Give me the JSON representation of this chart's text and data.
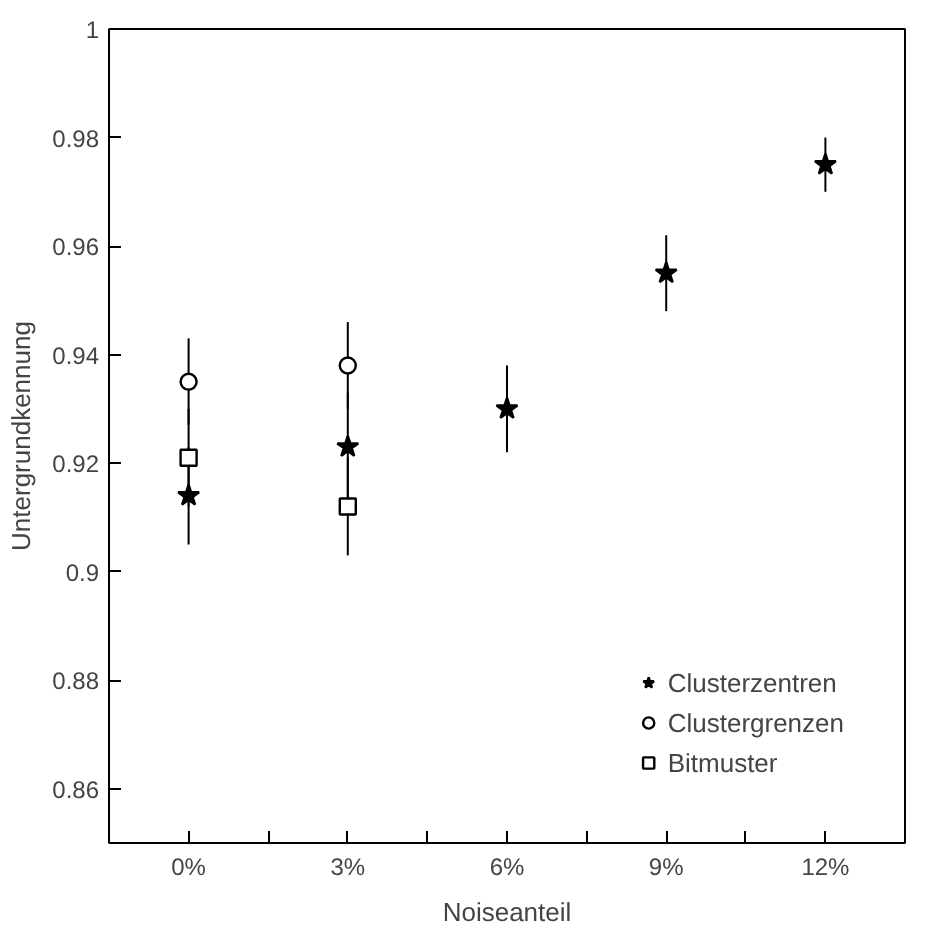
{
  "chart_data": {
    "type": "scatter",
    "xlabel": "Noiseanteil",
    "ylabel": "Untergrundkennung",
    "x": [
      0,
      3,
      6,
      9,
      12
    ],
    "xlim": [
      -1.5,
      13.5
    ],
    "xticks": [
      {
        "value": 0,
        "label": "0%"
      },
      {
        "value": 1.5,
        "label": null
      },
      {
        "value": 3,
        "label": "3%"
      },
      {
        "value": 4.5,
        "label": null
      },
      {
        "value": 6,
        "label": "6%"
      },
      {
        "value": 7.5,
        "label": null
      },
      {
        "value": 9,
        "label": "9%"
      },
      {
        "value": 10.5,
        "label": null
      },
      {
        "value": 12,
        "label": "12%"
      }
    ],
    "ylim": [
      0.85,
      1
    ],
    "yticks": [
      0.86,
      0.88,
      {
        "value": 0.9,
        "label": "0.9"
      },
      0.92,
      0.94,
      0.96,
      0.98,
      {
        "value": 1,
        "label": "1"
      }
    ],
    "grid": false,
    "legend": "bottom right",
    "series": [
      {
        "name": "Clusterzentren",
        "color": "#000000",
        "marker": "star",
        "values": [
          0.914,
          0.923,
          0.93,
          0.955,
          0.975
        ],
        "errors": [
          0.009,
          0.01,
          0.008,
          0.007,
          0.005
        ]
      },
      {
        "name": "Clustergrenzen",
        "color": "#000000",
        "marker": "circle",
        "values": [
          0.935,
          0.938,
          null,
          null,
          null
        ],
        "errors": [
          0.008,
          0.008,
          null,
          null,
          null
        ]
      },
      {
        "name": "Bitmuster",
        "color": "#000000",
        "marker": "square",
        "values": [
          0.921,
          0.912,
          null,
          null,
          null
        ],
        "errors": [
          0.009,
          0.009,
          null,
          null,
          null
        ]
      }
    ]
  }
}
